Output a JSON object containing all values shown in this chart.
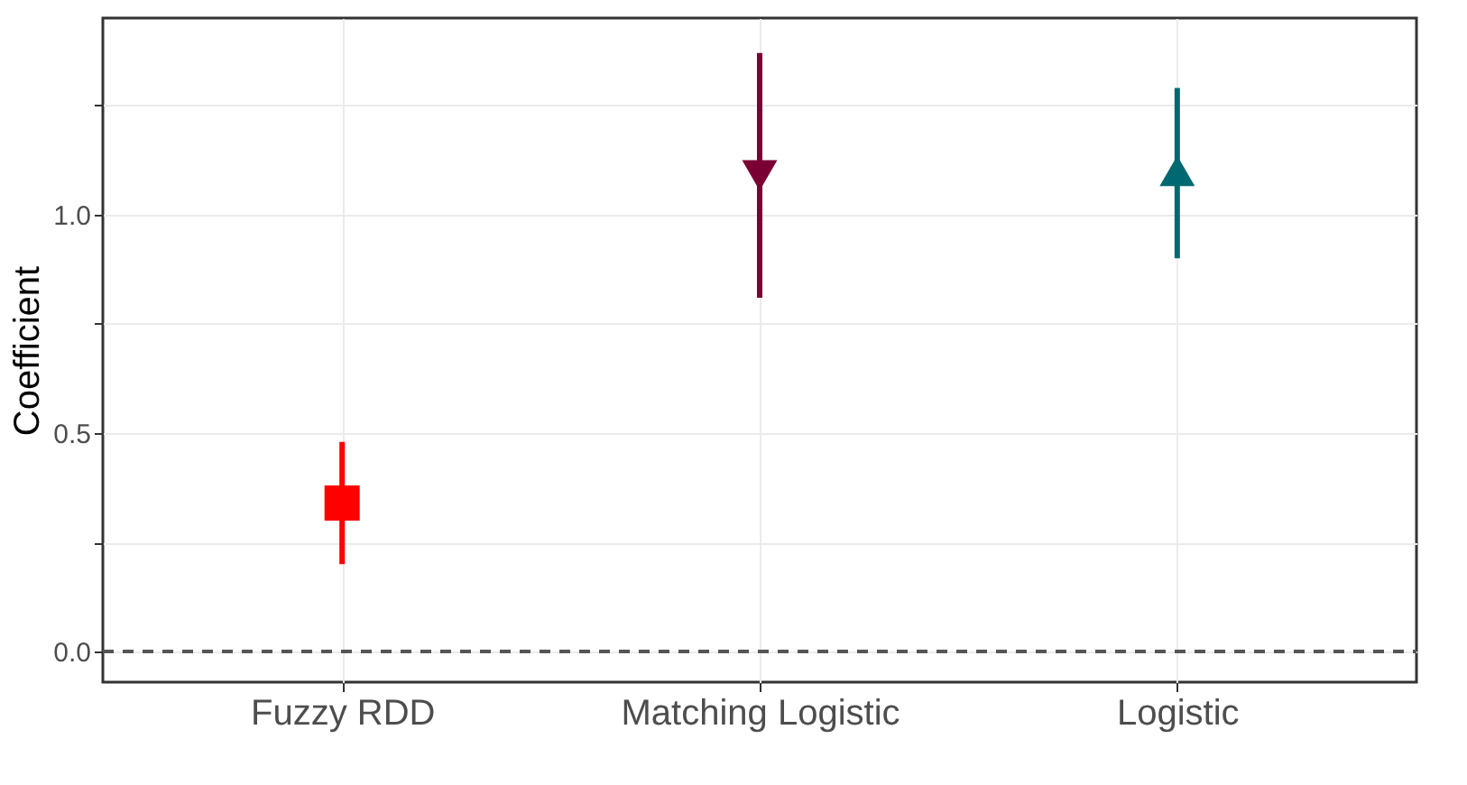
{
  "chart_data": {
    "type": "scatter",
    "ylabel": "Coefficient",
    "categories": [
      "Fuzzy RDD",
      "Matching Logistic",
      "Logistic"
    ],
    "series": [
      {
        "x": [
          "Fuzzy RDD"
        ],
        "values": [
          0.34
        ],
        "errors": [
          [
            0.2,
            0.48
          ]
        ],
        "color": "#ff0000",
        "marker": "square"
      },
      {
        "x": [
          "Matching Logistic"
        ],
        "values": [
          1.09
        ],
        "errors": [
          [
            0.81,
            1.37
          ]
        ],
        "color": "#7a0033",
        "marker": "triangle-down"
      },
      {
        "x": [
          "Logistic"
        ],
        "values": [
          1.1
        ],
        "errors": [
          [
            0.9,
            1.29
          ]
        ],
        "color": "#006870",
        "marker": "triangle"
      }
    ],
    "ylim": [
      -0.07,
      1.45
    ],
    "yticks": [
      {
        "value": 0,
        "label": "0.0"
      },
      {
        "value": 0.25,
        "label": null
      },
      {
        "value": 0.5,
        "label": "0.5"
      },
      {
        "value": 0.75,
        "label": null
      },
      {
        "value": 1.0,
        "label": "1.0"
      },
      {
        "value": 1.25,
        "label": null
      }
    ],
    "grid": true,
    "ref_lines": [
      {
        "axis": "y",
        "value": 0,
        "label": null,
        "color": "#555555",
        "line_style": "dashed"
      }
    ]
  }
}
